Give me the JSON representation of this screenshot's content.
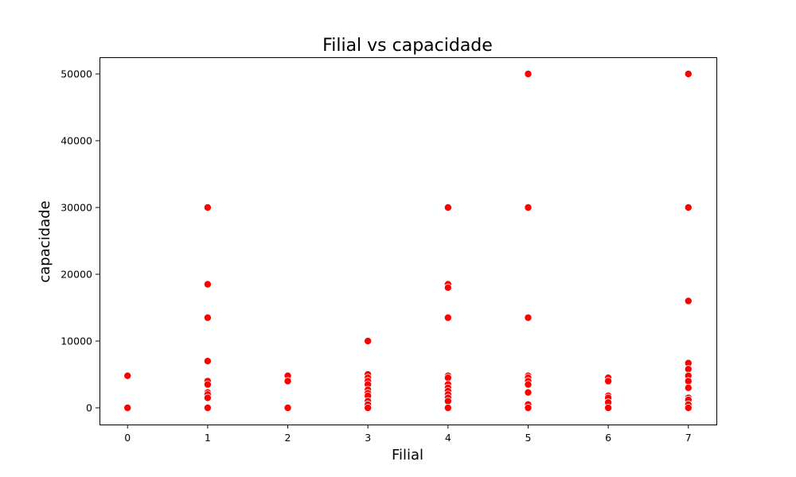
{
  "chart_data": {
    "type": "scatter",
    "title": "Filial vs capacidade",
    "xlabel": "Filial",
    "ylabel": "capacidade",
    "xlim": [
      -0.35,
      7.35
    ],
    "ylim": [
      -2500,
      52500
    ],
    "xticks": [
      0,
      1,
      2,
      3,
      4,
      5,
      6,
      7
    ],
    "yticks": [
      0,
      10000,
      20000,
      30000,
      40000,
      50000
    ],
    "grid": false,
    "legend": "none",
    "marker_color": "#ff0000",
    "points": [
      {
        "x": 0,
        "y": 4800
      },
      {
        "x": 0,
        "y": 0
      },
      {
        "x": 1,
        "y": 30000
      },
      {
        "x": 1,
        "y": 18500
      },
      {
        "x": 1,
        "y": 13500
      },
      {
        "x": 1,
        "y": 7000
      },
      {
        "x": 1,
        "y": 4000
      },
      {
        "x": 1,
        "y": 3500
      },
      {
        "x": 1,
        "y": 2300
      },
      {
        "x": 1,
        "y": 2000
      },
      {
        "x": 1,
        "y": 1500
      },
      {
        "x": 1,
        "y": 0
      },
      {
        "x": 2,
        "y": 4800
      },
      {
        "x": 2,
        "y": 4000
      },
      {
        "x": 2,
        "y": 0
      },
      {
        "x": 3,
        "y": 10000
      },
      {
        "x": 3,
        "y": 5000
      },
      {
        "x": 3,
        "y": 4500
      },
      {
        "x": 3,
        "y": 4000
      },
      {
        "x": 3,
        "y": 3500
      },
      {
        "x": 3,
        "y": 2700
      },
      {
        "x": 3,
        "y": 2200
      },
      {
        "x": 3,
        "y": 1800
      },
      {
        "x": 3,
        "y": 1000
      },
      {
        "x": 3,
        "y": 500
      },
      {
        "x": 3,
        "y": 0
      },
      {
        "x": 4,
        "y": 30000
      },
      {
        "x": 4,
        "y": 18500
      },
      {
        "x": 4,
        "y": 18000
      },
      {
        "x": 4,
        "y": 13500
      },
      {
        "x": 4,
        "y": 4800
      },
      {
        "x": 4,
        "y": 4500
      },
      {
        "x": 4,
        "y": 3500
      },
      {
        "x": 4,
        "y": 3000
      },
      {
        "x": 4,
        "y": 2500
      },
      {
        "x": 4,
        "y": 2000
      },
      {
        "x": 4,
        "y": 1500
      },
      {
        "x": 4,
        "y": 1000
      },
      {
        "x": 4,
        "y": 0
      },
      {
        "x": 5,
        "y": 50000
      },
      {
        "x": 5,
        "y": 30000
      },
      {
        "x": 5,
        "y": 13500
      },
      {
        "x": 5,
        "y": 4800
      },
      {
        "x": 5,
        "y": 4500
      },
      {
        "x": 5,
        "y": 4000
      },
      {
        "x": 5,
        "y": 3500
      },
      {
        "x": 5,
        "y": 2300
      },
      {
        "x": 5,
        "y": 500
      },
      {
        "x": 5,
        "y": 0
      },
      {
        "x": 6,
        "y": 4500
      },
      {
        "x": 6,
        "y": 4000
      },
      {
        "x": 6,
        "y": 1800
      },
      {
        "x": 6,
        "y": 1500
      },
      {
        "x": 6,
        "y": 800
      },
      {
        "x": 6,
        "y": 0
      },
      {
        "x": 7,
        "y": 50000
      },
      {
        "x": 7,
        "y": 30000
      },
      {
        "x": 7,
        "y": 16000
      },
      {
        "x": 7,
        "y": 6700
      },
      {
        "x": 7,
        "y": 5800
      },
      {
        "x": 7,
        "y": 4800
      },
      {
        "x": 7,
        "y": 4000
      },
      {
        "x": 7,
        "y": 3000
      },
      {
        "x": 7,
        "y": 1500
      },
      {
        "x": 7,
        "y": 1200
      },
      {
        "x": 7,
        "y": 500
      },
      {
        "x": 7,
        "y": 0
      }
    ]
  }
}
